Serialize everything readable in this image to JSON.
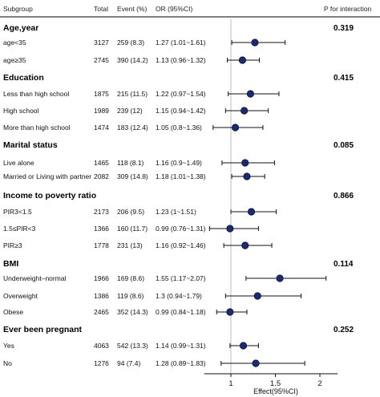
{
  "chart_data": {
    "type": "forest",
    "columns": {
      "subgroup": "Subgroup",
      "total": "Total",
      "event": "Event (%)",
      "or": "OR (95%CI)",
      "p": "P for interaction"
    },
    "xlabel": "Effect(95%CI)",
    "xlim": [
      0.7,
      2.2
    ],
    "xticks": [
      "1",
      "1.5",
      "2"
    ],
    "xtick_values": [
      1,
      1.5,
      2
    ],
    "reference_line": 1,
    "point_color": "#1c2a6e",
    "groups": [
      {
        "name": "Age,year",
        "p": "0.319",
        "rows": [
          {
            "label": "age<35",
            "total": "3127",
            "event": "259 (8.3)",
            "or_text": "1.27 (1.01~1.61)",
            "or": 1.27,
            "lo": 1.01,
            "hi": 1.61
          },
          {
            "label": "age≥35",
            "total": "2745",
            "event": "390 (14.2)",
            "or_text": "1.13 (0.96~1.32)",
            "or": 1.13,
            "lo": 0.96,
            "hi": 1.32
          }
        ]
      },
      {
        "name": "Education",
        "p": "0.415",
        "rows": [
          {
            "label": "Less than high school",
            "total": "1875",
            "event": "215 (11.5)",
            "or_text": "1.22 (0.97~1.54)",
            "or": 1.22,
            "lo": 0.97,
            "hi": 1.54
          },
          {
            "label": "High school",
            "total": "1989",
            "event": "239 (12)",
            "or_text": "1.15 (0.94~1.42)",
            "or": 1.15,
            "lo": 0.94,
            "hi": 1.42
          },
          {
            "label": "More than high school",
            "total": "1474",
            "event": "183 (12.4)",
            "or_text": "1.05 (0.8~1.36)",
            "or": 1.05,
            "lo": 0.8,
            "hi": 1.36
          }
        ]
      },
      {
        "name": "Marital status",
        "p": "0.085",
        "rows": [
          {
            "label": "Live alone",
            "total": "1465",
            "event": "118 (8.1)",
            "or_text": "1.16 (0.9~1.49)",
            "or": 1.16,
            "lo": 0.9,
            "hi": 1.49
          },
          {
            "label": "Married or Living with partner",
            "total": "2082",
            "event": "309 (14.8)",
            "or_text": "1.18 (1.01~1.38)",
            "or": 1.18,
            "lo": 1.01,
            "hi": 1.38
          }
        ]
      },
      {
        "name": "Income to poverty ratio",
        "p": "0.866",
        "rows": [
          {
            "label": "PIR3<1.5",
            "total": "2173",
            "event": "206 (9.5)",
            "or_text": "1.23 (1~1.51)",
            "or": 1.23,
            "lo": 1.0,
            "hi": 1.51
          },
          {
            "label": "1.5≤PIR<3",
            "total": "1366",
            "event": "160 (11.7)",
            "or_text": "0.99 (0.76~1.31)",
            "or": 0.99,
            "lo": 0.76,
            "hi": 1.31
          },
          {
            "label": "PIR≥3",
            "total": "1778",
            "event": "231 (13)",
            "or_text": "1.16 (0.92~1.46)",
            "or": 1.16,
            "lo": 0.92,
            "hi": 1.46
          }
        ]
      },
      {
        "name": "BMI",
        "p": "0.114",
        "rows": [
          {
            "label": "Underweight–normal",
            "total": "1966",
            "event": "169 (8.6)",
            "or_text": "1.55 (1.17~2.07)",
            "or": 1.55,
            "lo": 1.17,
            "hi": 2.07
          },
          {
            "label": "Overweight",
            "total": "1386",
            "event": "119 (8.6)",
            "or_text": "1.3 (0.94~1.79)",
            "or": 1.3,
            "lo": 0.94,
            "hi": 1.79
          },
          {
            "label": "Obese",
            "total": "2465",
            "event": "352 (14.3)",
            "or_text": "0.99 (0.84~1.18)",
            "or": 0.99,
            "lo": 0.84,
            "hi": 1.18
          }
        ]
      },
      {
        "name": "Ever been pregnant",
        "p": "0.252",
        "rows": [
          {
            "label": "Yes",
            "total": "4063",
            "event": "542 (13.3)",
            "or_text": "1.14 (0.99~1.31)",
            "or": 1.14,
            "lo": 0.99,
            "hi": 1.31
          },
          {
            "label": "No",
            "total": "1276",
            "event": "94 (7.4)",
            "or_text": "1.28 (0.89~1.83)",
            "or": 1.28,
            "lo": 0.89,
            "hi": 1.83
          }
        ]
      }
    ]
  }
}
